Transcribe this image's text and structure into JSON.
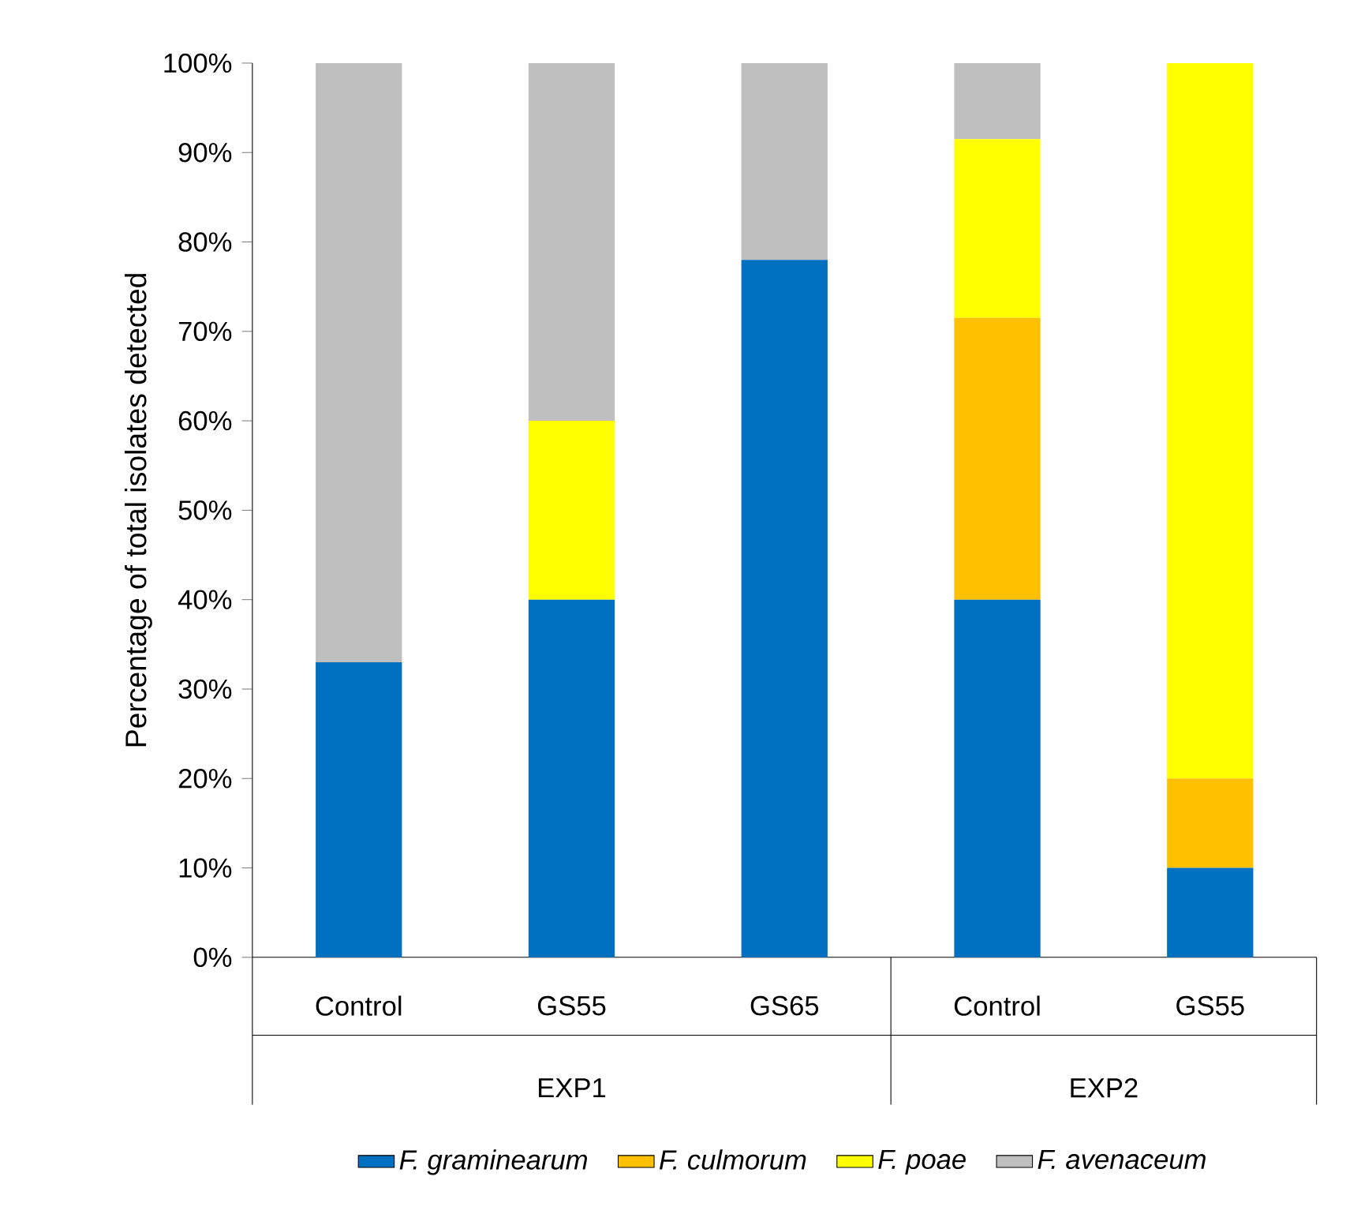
{
  "chart_data": {
    "type": "bar",
    "stacked": true,
    "ylabel": "Percentage of total isolates detected",
    "categories": [
      "Control",
      "GS55",
      "GS65",
      "Control",
      "GS55"
    ],
    "annotations": [
      "EXP1",
      "EXP2"
    ],
    "series": [
      {
        "name": "F. graminearum",
        "color": "#0070c0",
        "values": [
          33,
          40,
          78,
          40,
          10
        ]
      },
      {
        "name": "F. culmorum",
        "color": "#ffc000",
        "values": [
          0,
          0,
          0,
          31.5,
          10
        ]
      },
      {
        "name": "F. poae",
        "color": "#ffff00",
        "values": [
          0,
          20,
          0,
          20,
          80
        ]
      },
      {
        "name": "F. avenaceum",
        "color": "#bfbfbf",
        "values": [
          67,
          40,
          22,
          8.5,
          0
        ]
      }
    ],
    "ylim": [
      0,
      100
    ],
    "yticks": [
      {
        "value": 0,
        "label": "0%"
      },
      {
        "value": 10,
        "label": "10%"
      },
      {
        "value": 20,
        "label": "20%"
      },
      {
        "value": 30,
        "label": "30%"
      },
      {
        "value": 40,
        "label": "40%"
      },
      {
        "value": 50,
        "label": "50%"
      },
      {
        "value": 60,
        "label": "60%"
      },
      {
        "value": 70,
        "label": "70%"
      },
      {
        "value": 80,
        "label": "80%"
      },
      {
        "value": 90,
        "label": "90%"
      },
      {
        "value": 100,
        "label": "100%"
      }
    ],
    "grid": false,
    "legend": "bottom"
  }
}
